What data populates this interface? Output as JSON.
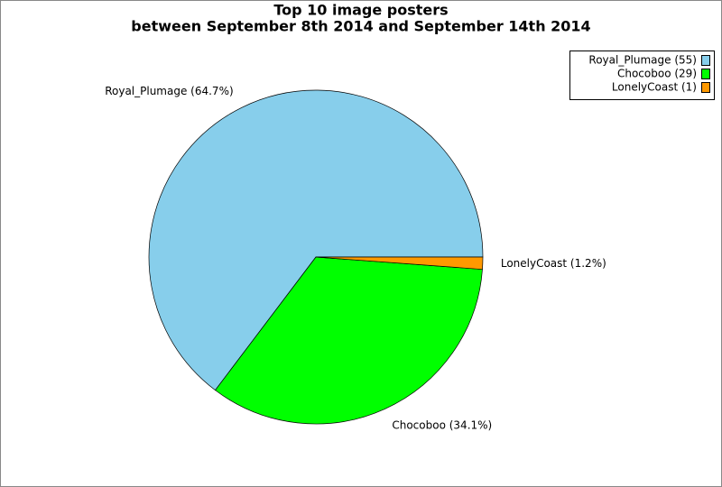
{
  "chart_data": {
    "type": "pie",
    "title": "Top 10 image posters",
    "subtitle": "between September 8th 2014 and September 14th 2014",
    "values": [
      55,
      29,
      1
    ],
    "value_labels": [
      "Royal_Plumage (55)",
      "Chocoboo (29)",
      "LonelyCoast (1)"
    ],
    "percents": [
      64.7,
      34.1,
      1.2
    ],
    "slice_labels": [
      "Royal_Plumage (64.7%)",
      "Chocoboo (34.1%)",
      "LonelyCoast (1.2%)"
    ],
    "colors": [
      "#87ceeb",
      "#00ff00",
      "#ff9900"
    ],
    "legend": "top-right"
  }
}
